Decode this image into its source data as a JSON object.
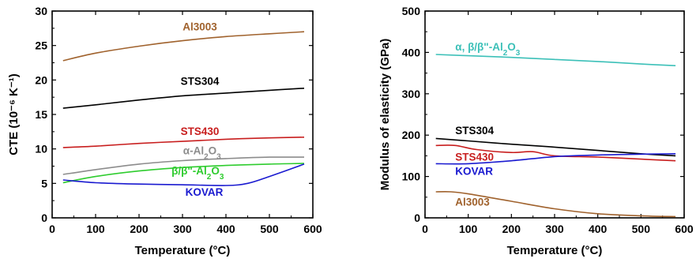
{
  "chart_data": [
    {
      "type": "line",
      "xlabel": "Temperature (°C)",
      "ylabel": "CTE (10⁻⁶ K⁻¹)",
      "xlim": [
        0,
        600
      ],
      "ylim": [
        0,
        30
      ],
      "xticks": [
        0,
        100,
        200,
        300,
        400,
        500,
        600
      ],
      "yticks": [
        0,
        5,
        10,
        15,
        20,
        25,
        30
      ],
      "grid": false,
      "series": [
        {
          "name": "Al3003",
          "color": "#a0622d",
          "x": [
            25,
            100,
            200,
            300,
            400,
            500,
            580
          ],
          "y": [
            22.8,
            23.9,
            24.9,
            25.7,
            26.3,
            26.7,
            27.0
          ]
        },
        {
          "name": "STS304",
          "color": "#000000",
          "x": [
            25,
            100,
            200,
            300,
            400,
            500,
            580
          ],
          "y": [
            15.9,
            16.4,
            17.1,
            17.7,
            18.1,
            18.5,
            18.8
          ]
        },
        {
          "name": "STS430",
          "color": "#c81e1e",
          "x": [
            25,
            100,
            200,
            300,
            400,
            500,
            580
          ],
          "y": [
            10.2,
            10.4,
            10.8,
            11.1,
            11.4,
            11.6,
            11.7
          ]
        },
        {
          "name": "α-Al2O3",
          "color": "#8c8c8c",
          "x": [
            25,
            100,
            200,
            300,
            400,
            500,
            580
          ],
          "y": [
            6.3,
            7.0,
            7.8,
            8.3,
            8.6,
            8.8,
            8.8
          ]
        },
        {
          "name": "β/β\"-Al2O3",
          "color": "#2ecc2e",
          "x": [
            25,
            100,
            200,
            300,
            400,
            500,
            580
          ],
          "y": [
            5.1,
            6.0,
            6.8,
            7.3,
            7.6,
            7.8,
            7.9
          ]
        },
        {
          "name": "KOVAR",
          "color": "#1a1ad0",
          "x": [
            25,
            100,
            200,
            300,
            400,
            450,
            500,
            580
          ],
          "y": [
            5.5,
            5.1,
            4.9,
            4.8,
            4.7,
            5.0,
            6.0,
            7.8
          ]
        }
      ],
      "labels": [
        {
          "series": 0,
          "x": 340,
          "y": 27.2
        },
        {
          "series": 1,
          "x": 340,
          "y": 19.3
        },
        {
          "series": 2,
          "x": 340,
          "y": 12.0
        },
        {
          "series": 3,
          "x": 345,
          "y": 9.2
        },
        {
          "series": 4,
          "x": 335,
          "y": 6.3
        },
        {
          "series": 5,
          "x": 350,
          "y": 3.2
        }
      ]
    },
    {
      "type": "line",
      "xlabel": "Temperature (°C)",
      "ylabel": "Modulus of elasticity (GPa)",
      "xlim": [
        0,
        600
      ],
      "ylim": [
        0,
        500
      ],
      "xticks": [
        0,
        100,
        200,
        300,
        400,
        500,
        600
      ],
      "yticks": [
        0,
        100,
        200,
        300,
        400,
        500
      ],
      "grid": false,
      "series": [
        {
          "name": "α, β/β\"-Al2O3",
          "color": "#3cc0b8",
          "x": [
            25,
            100,
            200,
            300,
            400,
            500,
            580
          ],
          "y": [
            395,
            392,
            388,
            383,
            378,
            372,
            368
          ]
        },
        {
          "name": "STS304",
          "color": "#000000",
          "x": [
            25,
            100,
            200,
            300,
            400,
            500,
            580
          ],
          "y": [
            192,
            186,
            178,
            171,
            163,
            155,
            150
          ]
        },
        {
          "name": "STS430",
          "color": "#c81e1e",
          "x": [
            25,
            70,
            120,
            200,
            250,
            300,
            400,
            500,
            580
          ],
          "y": [
            175,
            175,
            165,
            158,
            160,
            150,
            147,
            142,
            138
          ]
        },
        {
          "name": "KOVAR",
          "color": "#1a1ad0",
          "x": [
            25,
            100,
            200,
            300,
            400,
            500,
            580
          ],
          "y": [
            131,
            131,
            138,
            148,
            152,
            154,
            155
          ]
        },
        {
          "name": "Al3003",
          "color": "#a0622d",
          "x": [
            25,
            60,
            100,
            200,
            300,
            400,
            500,
            580
          ],
          "y": [
            63,
            63,
            58,
            40,
            22,
            10,
            5,
            3
          ]
        }
      ],
      "labels": [
        {
          "series": 0,
          "x": 70,
          "y": 405
        },
        {
          "series": 1,
          "x": 70,
          "y": 202
        },
        {
          "series": 2,
          "x": 70,
          "y": 138
        },
        {
          "series": 3,
          "x": 70,
          "y": 104
        },
        {
          "series": 4,
          "x": 70,
          "y": 30
        }
      ]
    }
  ]
}
